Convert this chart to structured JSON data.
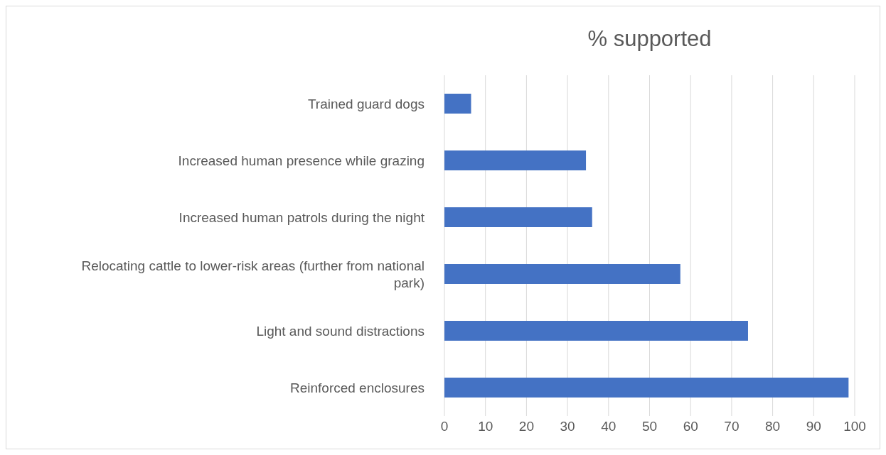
{
  "chart_data": {
    "type": "bar",
    "orientation": "horizontal",
    "title": "% supported",
    "categories": [
      "Trained guard dogs",
      "Increased human presence while grazing",
      "Increased human patrols during the night",
      "Relocating cattle to lower-risk areas (further from national park)",
      "Light and sound distractions",
      "Reinforced enclosures"
    ],
    "values": [
      6.5,
      34.5,
      36,
      57.5,
      74,
      98.5
    ],
    "color": "#4472c4",
    "xlim": [
      0,
      100
    ],
    "xticks": [
      0,
      10,
      20,
      30,
      40,
      50,
      60,
      70,
      80,
      90,
      100
    ],
    "grid": "x",
    "legend": false
  }
}
